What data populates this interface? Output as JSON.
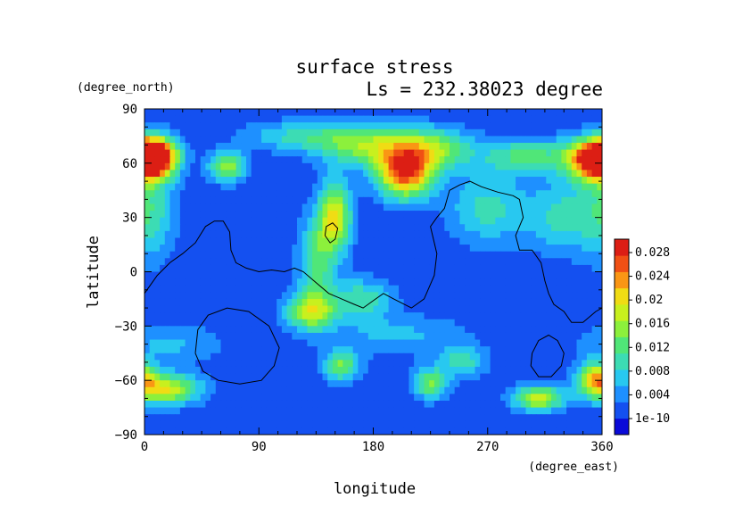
{
  "chart_data": {
    "type": "heatmap",
    "title": "surface stress",
    "subtitle": "Ls = 232.38023 degree",
    "xlabel": "longitude",
    "ylabel": "latitude",
    "x_units": "(degree_east)",
    "y_units": "(degree_north)",
    "xlim": [
      0,
      360
    ],
    "ylim": [
      -90,
      90
    ],
    "x_ticks": [
      "0",
      "90",
      "180",
      "270",
      "360"
    ],
    "y_ticks": [
      "90",
      "60",
      "30",
      "0",
      "−30",
      "−60",
      "−90"
    ],
    "grid": false,
    "colorbar": {
      "labels": [
        "0.028",
        "0.024",
        "0.02",
        "0.016",
        "0.012",
        "0.008",
        "0.004",
        "1e-10"
      ],
      "min": 0,
      "max": 0.03,
      "colors": [
        "#0a0ad8",
        "#1450f0",
        "#1e90ff",
        "#28c8f0",
        "#3cdcb4",
        "#50e678",
        "#8cf03c",
        "#c8f01e",
        "#f0dc14",
        "#fa9614",
        "#f05014",
        "#dc1e14"
      ]
    },
    "field": {
      "background": 0.003,
      "blobs": [
        {
          "lon": 8,
          "lat": 64,
          "amp": 0.024,
          "sx": 12,
          "sy": 7
        },
        {
          "lon": 355,
          "lat": 62,
          "amp": 0.026,
          "sx": 16,
          "sy": 8
        },
        {
          "lon": 5,
          "lat": 35,
          "amp": 0.008,
          "sx": 14,
          "sy": 20
        },
        {
          "lon": 65,
          "lat": 58,
          "amp": 0.014,
          "sx": 10,
          "sy": 6
        },
        {
          "lon": 205,
          "lat": 55,
          "amp": 0.024,
          "sx": 16,
          "sy": 10
        },
        {
          "lon": 175,
          "lat": 70,
          "amp": 0.013,
          "sx": 28,
          "sy": 8
        },
        {
          "lon": 230,
          "lat": 68,
          "amp": 0.011,
          "sx": 20,
          "sy": 8
        },
        {
          "lon": 120,
          "lat": 75,
          "amp": 0.007,
          "sx": 30,
          "sy": 6
        },
        {
          "lon": 300,
          "lat": 64,
          "amp": 0.01,
          "sx": 25,
          "sy": 7
        },
        {
          "lon": 150,
          "lat": 30,
          "amp": 0.017,
          "sx": 9,
          "sy": 14
        },
        {
          "lon": 135,
          "lat": 5,
          "amp": 0.01,
          "sx": 10,
          "sy": 18
        },
        {
          "lon": 130,
          "lat": -22,
          "amp": 0.014,
          "sx": 14,
          "sy": 7
        },
        {
          "lon": 170,
          "lat": -15,
          "amp": 0.009,
          "sx": 18,
          "sy": 8
        },
        {
          "lon": 270,
          "lat": 35,
          "amp": 0.008,
          "sx": 22,
          "sy": 14
        },
        {
          "lon": 330,
          "lat": 30,
          "amp": 0.008,
          "sx": 20,
          "sy": 14
        },
        {
          "lon": 15,
          "lat": -65,
          "amp": 0.017,
          "sx": 20,
          "sy": 6
        },
        {
          "lon": 155,
          "lat": -52,
          "amp": 0.012,
          "sx": 10,
          "sy": 6
        },
        {
          "lon": 225,
          "lat": -62,
          "amp": 0.012,
          "sx": 10,
          "sy": 6
        },
        {
          "lon": 250,
          "lat": -50,
          "amp": 0.008,
          "sx": 14,
          "sy": 6
        },
        {
          "lon": 310,
          "lat": -70,
          "amp": 0.016,
          "sx": 14,
          "sy": 5
        },
        {
          "lon": 355,
          "lat": -58,
          "amp": 0.015,
          "sx": 10,
          "sy": 6
        },
        {
          "lon": 20,
          "lat": -40,
          "amp": 0.005,
          "sx": 30,
          "sy": 8
        },
        {
          "lon": 200,
          "lat": -35,
          "amp": 0.005,
          "sx": 40,
          "sy": 8
        }
      ]
    },
    "contours": [
      [
        [
          0,
          -12
        ],
        [
          10,
          -2
        ],
        [
          20,
          5
        ],
        [
          30,
          10
        ],
        [
          40,
          16
        ],
        [
          48,
          25
        ],
        [
          55,
          28
        ],
        [
          62,
          28
        ],
        [
          67,
          22
        ],
        [
          68,
          12
        ],
        [
          72,
          5
        ],
        [
          80,
          2
        ],
        [
          90,
          0
        ],
        [
          100,
          1
        ],
        [
          110,
          0
        ],
        [
          118,
          2
        ],
        [
          125,
          0
        ],
        [
          135,
          -6
        ],
        [
          145,
          -12
        ],
        [
          155,
          -15
        ],
        [
          165,
          -18
        ],
        [
          172,
          -20
        ],
        [
          180,
          -16
        ],
        [
          188,
          -12
        ],
        [
          196,
          -15
        ],
        [
          210,
          -20
        ],
        [
          220,
          -15
        ],
        [
          228,
          -2
        ],
        [
          230,
          10
        ],
        [
          225,
          25
        ],
        [
          230,
          30
        ],
        [
          236,
          35
        ],
        [
          240,
          45
        ],
        [
          248,
          48
        ],
        [
          256,
          50
        ],
        [
          265,
          47
        ],
        [
          278,
          44
        ],
        [
          290,
          42
        ],
        [
          295,
          40
        ],
        [
          298,
          30
        ],
        [
          292,
          20
        ],
        [
          295,
          12
        ],
        [
          305,
          12
        ],
        [
          312,
          5
        ],
        [
          315,
          -5
        ],
        [
          318,
          -12
        ],
        [
          322,
          -18
        ],
        [
          330,
          -22
        ],
        [
          336,
          -28
        ],
        [
          345,
          -28
        ],
        [
          355,
          -22
        ],
        [
          360,
          -20
        ]
      ],
      [
        [
          142,
          20
        ],
        [
          143,
          25
        ],
        [
          148,
          27
        ],
        [
          152,
          24
        ],
        [
          150,
          18
        ],
        [
          146,
          16
        ],
        [
          142,
          20
        ]
      ],
      [
        [
          40,
          -45
        ],
        [
          42,
          -32
        ],
        [
          50,
          -24
        ],
        [
          65,
          -20
        ],
        [
          82,
          -22
        ],
        [
          98,
          -30
        ],
        [
          106,
          -42
        ],
        [
          102,
          -52
        ],
        [
          92,
          -60
        ],
        [
          75,
          -62
        ],
        [
          58,
          -60
        ],
        [
          46,
          -55
        ],
        [
          40,
          -45
        ]
      ],
      [
        [
          305,
          -45
        ],
        [
          310,
          -38
        ],
        [
          318,
          -35
        ],
        [
          325,
          -38
        ],
        [
          330,
          -45
        ],
        [
          328,
          -52
        ],
        [
          320,
          -58
        ],
        [
          310,
          -58
        ],
        [
          304,
          -52
        ],
        [
          305,
          -45
        ]
      ]
    ]
  }
}
